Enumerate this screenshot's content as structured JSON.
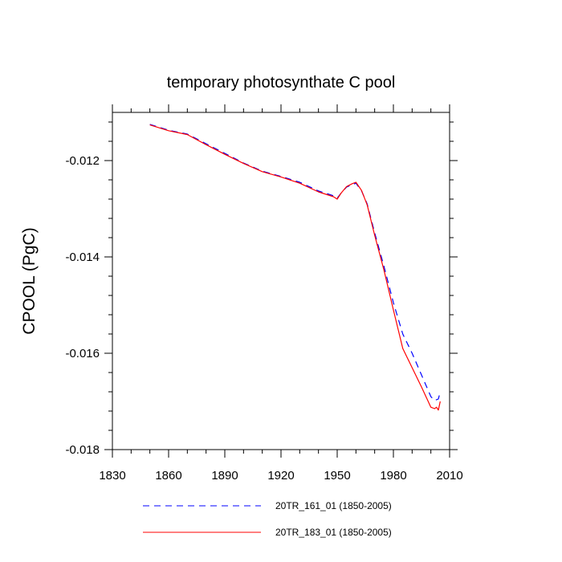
{
  "chart_data": {
    "type": "line",
    "title": "temporary photosynthate C pool",
    "xlabel": "",
    "ylabel": "CPOOL  (PgC)",
    "xlim": [
      1830,
      2010
    ],
    "ylim": [
      -0.018,
      -0.011
    ],
    "xticks": [
      1830,
      1860,
      1890,
      1920,
      1950,
      1980,
      2010
    ],
    "xtick_labels": [
      "1830",
      "1860",
      "1890",
      "1920",
      "1950",
      "1980",
      "2010"
    ],
    "yticks": [
      -0.012,
      -0.014,
      -0.016,
      -0.018
    ],
    "ytick_labels": [
      "-0.012",
      "-0.014",
      "-0.016",
      "-0.018"
    ],
    "grid": false,
    "legend_position": "bottom",
    "series": [
      {
        "name": "20TR_161_01 (1850-2005)",
        "color": "#0000ff",
        "style": "dashed",
        "x": [
          1850,
          1860,
          1870,
          1880,
          1890,
          1900,
          1910,
          1920,
          1930,
          1940,
          1948,
          1950,
          1952,
          1955,
          1958,
          1960,
          1963,
          1966,
          1970,
          1975,
          1980,
          1985,
          1990,
          1995,
          2000,
          2002,
          2004,
          2005
        ],
        "y": [
          -0.01125,
          -0.01137,
          -0.01145,
          -0.01165,
          -0.01185,
          -0.01205,
          -0.01222,
          -0.01233,
          -0.01245,
          -0.01263,
          -0.01273,
          -0.01278,
          -0.01268,
          -0.01255,
          -0.0125,
          -0.01247,
          -0.01263,
          -0.0129,
          -0.0135,
          -0.0142,
          -0.01495,
          -0.0156,
          -0.016,
          -0.01645,
          -0.0169,
          -0.01698,
          -0.01695,
          -0.0168
        ]
      },
      {
        "name": "20TR_183_01 (1850-2005)",
        "color": "#ff0000",
        "style": "solid",
        "x": [
          1850,
          1860,
          1870,
          1880,
          1890,
          1900,
          1910,
          1920,
          1930,
          1940,
          1948,
          1950,
          1952,
          1955,
          1958,
          1960,
          1963,
          1966,
          1970,
          1975,
          1980,
          1985,
          1990,
          1995,
          2000,
          2002,
          2003,
          2004,
          2005
        ],
        "y": [
          -0.01126,
          -0.01138,
          -0.01146,
          -0.01167,
          -0.01187,
          -0.01206,
          -0.01223,
          -0.01234,
          -0.01247,
          -0.01265,
          -0.01275,
          -0.0128,
          -0.01268,
          -0.01254,
          -0.01248,
          -0.01245,
          -0.01262,
          -0.01292,
          -0.01355,
          -0.01428,
          -0.0151,
          -0.0159,
          -0.0163,
          -0.0167,
          -0.01712,
          -0.01715,
          -0.01712,
          -0.01718,
          -0.017
        ]
      }
    ]
  }
}
